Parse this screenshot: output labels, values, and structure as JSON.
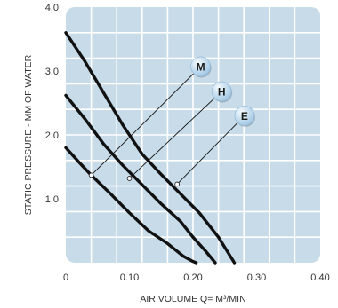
{
  "chart_data": {
    "type": "line",
    "title": "",
    "xlabel": "AIR VOLUME Q= M³/MIN",
    "ylabel": "STATIC PRESSURE - MM OF WATER",
    "xlim": [
      0,
      0.4
    ],
    "ylim": [
      0,
      4.0
    ],
    "x_ticks": [
      0,
      0.1,
      0.2,
      0.3,
      0.4
    ],
    "x_tick_labels": [
      "0",
      "0.10",
      "0.20",
      "0.30",
      "0.40"
    ],
    "y_ticks": [
      1.0,
      2.0,
      3.0,
      4.0
    ],
    "y_tick_labels": [
      "1.0",
      "2.0",
      "3.0",
      "4.0"
    ],
    "grid": true,
    "colors": {
      "plot_background": "#c7dbe9",
      "grid": "#ffffff",
      "curve": "#111111",
      "marker_fill": "#9ec6e4",
      "marker_highlight": "#f4f9fd"
    },
    "series": [
      {
        "name": "M",
        "x": [
          0,
          0.02,
          0.04,
          0.07,
          0.1,
          0.13,
          0.16,
          0.185,
          0.2,
          0.205
        ],
        "y": [
          1.8,
          1.58,
          1.37,
          1.08,
          0.78,
          0.5,
          0.3,
          0.1,
          0.02,
          0
        ]
      },
      {
        "name": "H",
        "x": [
          0,
          0.03,
          0.06,
          0.09,
          0.12,
          0.15,
          0.18,
          0.2,
          0.22,
          0.235
        ],
        "y": [
          2.62,
          2.25,
          1.85,
          1.52,
          1.22,
          0.92,
          0.65,
          0.4,
          0.18,
          0
        ]
      },
      {
        "name": "E",
        "x": [
          0,
          0.03,
          0.06,
          0.09,
          0.12,
          0.15,
          0.18,
          0.21,
          0.24,
          0.265
        ],
        "y": [
          3.6,
          3.15,
          2.65,
          2.15,
          1.7,
          1.38,
          1.08,
          0.78,
          0.4,
          0
        ]
      }
    ],
    "markers": [
      {
        "label": "M",
        "anchor_x": 0.04,
        "anchor_y": 1.37,
        "bubble_x": 0.212,
        "bubble_y": 3.07
      },
      {
        "label": "H",
        "anchor_x": 0.1,
        "anchor_y": 1.32,
        "bubble_x": 0.245,
        "bubble_y": 2.68
      },
      {
        "label": "E",
        "anchor_x": 0.175,
        "anchor_y": 1.23,
        "bubble_x": 0.281,
        "bubble_y": 2.3
      }
    ]
  }
}
